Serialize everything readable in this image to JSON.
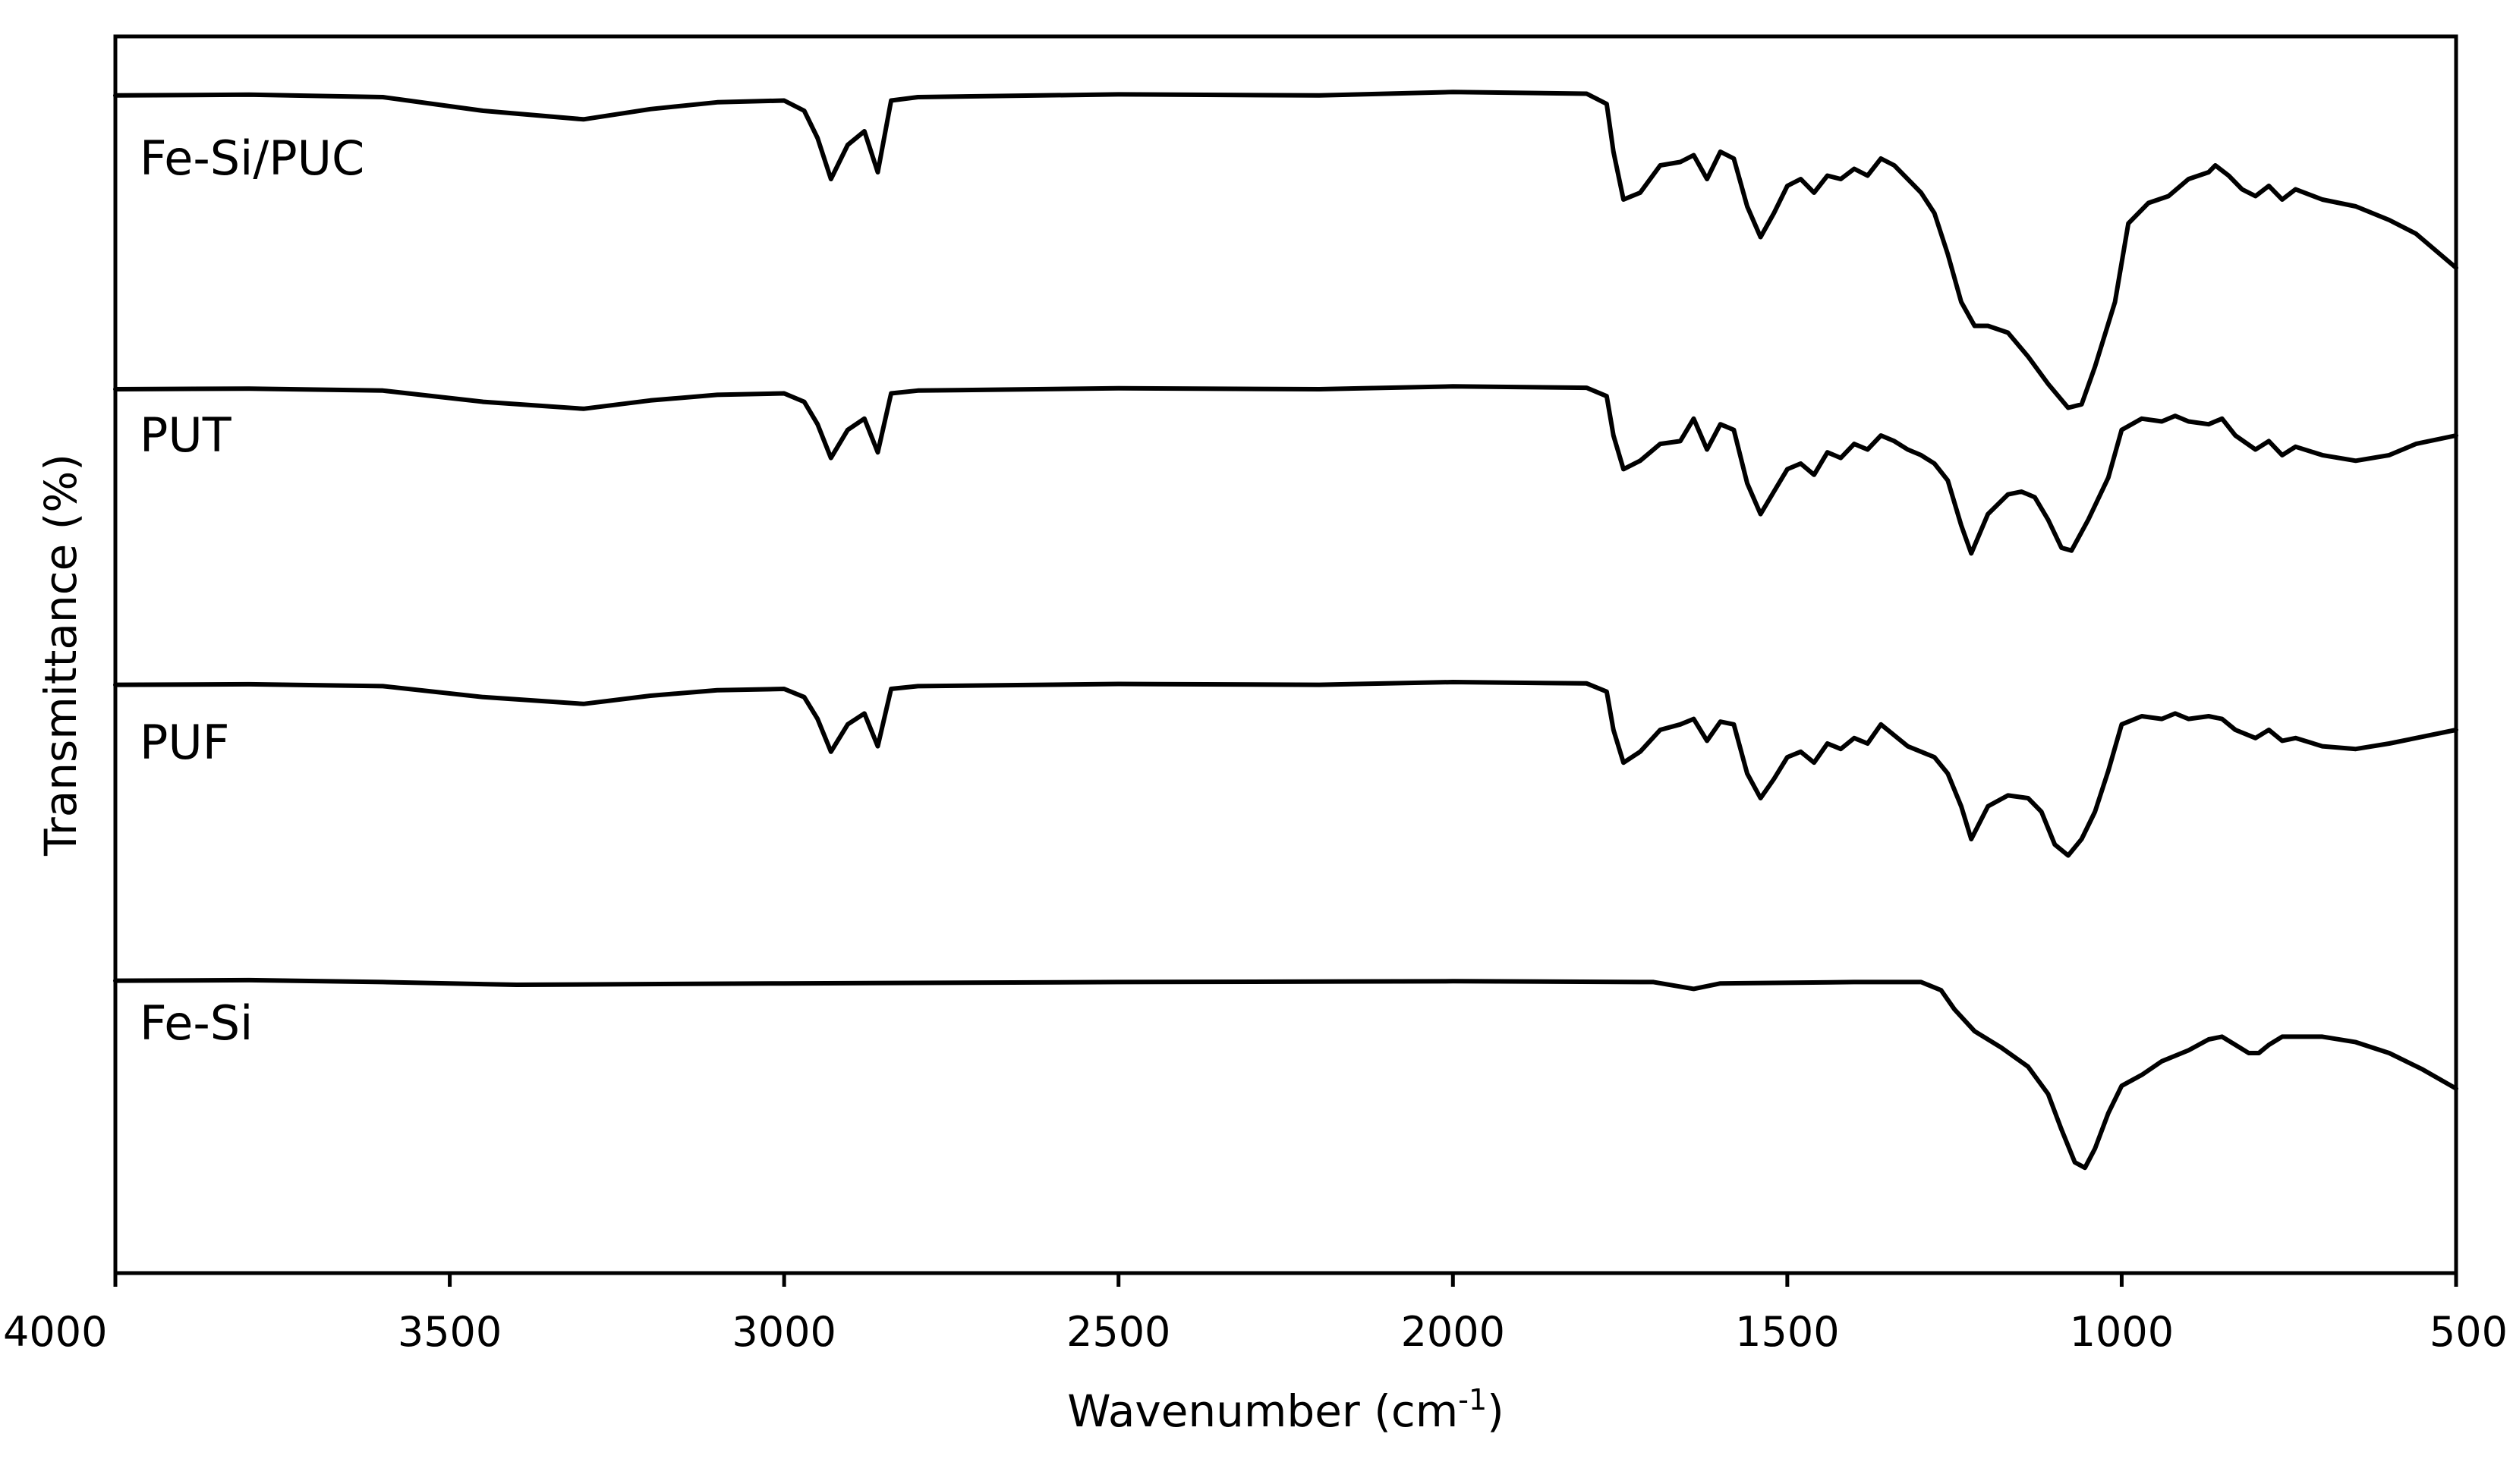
{
  "chart_data": {
    "type": "line",
    "title": "",
    "xlabel": "Wavenumber",
    "xlabel_unit_prefix": "(cm",
    "xlabel_unit_exp": "-1",
    "xlabel_unit_suffix": ")",
    "ylabel": "Transmittance (%)",
    "xlim": [
      4000,
      500
    ],
    "x_reversed": true,
    "y_tick_labels": false,
    "grid": false,
    "legend": "none (series labelled inline)",
    "x_ticks": [
      4000,
      3500,
      3000,
      2500,
      2000,
      1500,
      1000,
      500
    ],
    "y_units": "relative transmittance, 0-100 per panel band (stacked, offset traces)",
    "series": [
      {
        "name": "Fe-Si/PUC",
        "points": [
          [
            4000,
            96.5
          ],
          [
            3800,
            96.7
          ],
          [
            3600,
            96
          ],
          [
            3450,
            92
          ],
          [
            3300,
            89.5
          ],
          [
            3200,
            92.5
          ],
          [
            3100,
            94.5
          ],
          [
            3000,
            95
          ],
          [
            2970,
            92
          ],
          [
            2950,
            84
          ],
          [
            2930,
            72
          ],
          [
            2905,
            82
          ],
          [
            2880,
            86
          ],
          [
            2860,
            74
          ],
          [
            2840,
            95
          ],
          [
            2800,
            96
          ],
          [
            2500,
            96.8
          ],
          [
            2200,
            96.5
          ],
          [
            2000,
            97.5
          ],
          [
            1800,
            97
          ],
          [
            1770,
            94
          ],
          [
            1760,
            80
          ],
          [
            1745,
            66
          ],
          [
            1720,
            68
          ],
          [
            1690,
            76
          ],
          [
            1660,
            77
          ],
          [
            1640,
            79
          ],
          [
            1620,
            72
          ],
          [
            1600,
            80
          ],
          [
            1580,
            78
          ],
          [
            1560,
            64
          ],
          [
            1540,
            55
          ],
          [
            1520,
            62
          ],
          [
            1500,
            70
          ],
          [
            1480,
            72
          ],
          [
            1460,
            68
          ],
          [
            1440,
            73
          ],
          [
            1420,
            72
          ],
          [
            1400,
            75
          ],
          [
            1380,
            73
          ],
          [
            1360,
            78
          ],
          [
            1340,
            76
          ],
          [
            1320,
            72
          ],
          [
            1300,
            68
          ],
          [
            1280,
            62
          ],
          [
            1260,
            50
          ],
          [
            1240,
            36
          ],
          [
            1220,
            29
          ],
          [
            1200,
            29
          ],
          [
            1170,
            27
          ],
          [
            1140,
            20
          ],
          [
            1110,
            12
          ],
          [
            1080,
            5
          ],
          [
            1060,
            6
          ],
          [
            1040,
            17
          ],
          [
            1010,
            36
          ],
          [
            990,
            59
          ],
          [
            960,
            65
          ],
          [
            930,
            67
          ],
          [
            900,
            72
          ],
          [
            870,
            74
          ],
          [
            860,
            76
          ],
          [
            840,
            73
          ],
          [
            820,
            69
          ],
          [
            800,
            67
          ],
          [
            780,
            70
          ],
          [
            760,
            66
          ],
          [
            740,
            69
          ],
          [
            700,
            66
          ],
          [
            650,
            64
          ],
          [
            600,
            60
          ],
          [
            560,
            56
          ],
          [
            500,
            46
          ]
        ]
      },
      {
        "name": "PUT",
        "points": [
          [
            4000,
            96.5
          ],
          [
            3800,
            96.7
          ],
          [
            3600,
            96
          ],
          [
            3450,
            92
          ],
          [
            3300,
            89.5
          ],
          [
            3200,
            92.5
          ],
          [
            3100,
            94.5
          ],
          [
            3000,
            95
          ],
          [
            2970,
            92
          ],
          [
            2950,
            84
          ],
          [
            2930,
            72
          ],
          [
            2905,
            82
          ],
          [
            2880,
            86
          ],
          [
            2860,
            74
          ],
          [
            2840,
            95
          ],
          [
            2800,
            96
          ],
          [
            2500,
            96.8
          ],
          [
            2200,
            96.5
          ],
          [
            2000,
            97.5
          ],
          [
            1800,
            97
          ],
          [
            1770,
            94
          ],
          [
            1760,
            80
          ],
          [
            1745,
            68
          ],
          [
            1720,
            71
          ],
          [
            1690,
            77
          ],
          [
            1660,
            78
          ],
          [
            1640,
            86
          ],
          [
            1620,
            75
          ],
          [
            1600,
            84
          ],
          [
            1580,
            82
          ],
          [
            1560,
            63
          ],
          [
            1540,
            52
          ],
          [
            1520,
            60
          ],
          [
            1500,
            68
          ],
          [
            1480,
            70
          ],
          [
            1460,
            66
          ],
          [
            1440,
            74
          ],
          [
            1420,
            72
          ],
          [
            1400,
            77
          ],
          [
            1380,
            75
          ],
          [
            1360,
            80
          ],
          [
            1340,
            78
          ],
          [
            1320,
            75
          ],
          [
            1300,
            73
          ],
          [
            1280,
            70
          ],
          [
            1260,
            64
          ],
          [
            1240,
            48
          ],
          [
            1225,
            38
          ],
          [
            1200,
            52
          ],
          [
            1170,
            59
          ],
          [
            1150,
            60
          ],
          [
            1130,
            58
          ],
          [
            1110,
            50
          ],
          [
            1090,
            40
          ],
          [
            1075,
            39
          ],
          [
            1050,
            50
          ],
          [
            1020,
            65
          ],
          [
            1000,
            82
          ],
          [
            970,
            86
          ],
          [
            940,
            85
          ],
          [
            920,
            87
          ],
          [
            900,
            85
          ],
          [
            870,
            84
          ],
          [
            850,
            86
          ],
          [
            830,
            80
          ],
          [
            800,
            75
          ],
          [
            780,
            78
          ],
          [
            760,
            73
          ],
          [
            740,
            76
          ],
          [
            700,
            73
          ],
          [
            650,
            71
          ],
          [
            600,
            73
          ],
          [
            560,
            77
          ],
          [
            500,
            80
          ]
        ]
      },
      {
        "name": "PUF",
        "points": [
          [
            4000,
            96.5
          ],
          [
            3800,
            96.7
          ],
          [
            3600,
            96
          ],
          [
            3450,
            92
          ],
          [
            3300,
            89.5
          ],
          [
            3200,
            92.5
          ],
          [
            3100,
            94.5
          ],
          [
            3000,
            95
          ],
          [
            2970,
            92
          ],
          [
            2950,
            84
          ],
          [
            2930,
            72
          ],
          [
            2905,
            82
          ],
          [
            2880,
            86
          ],
          [
            2860,
            74
          ],
          [
            2840,
            95
          ],
          [
            2800,
            96
          ],
          [
            2500,
            96.8
          ],
          [
            2200,
            96.5
          ],
          [
            2000,
            97.5
          ],
          [
            1800,
            97
          ],
          [
            1770,
            94
          ],
          [
            1760,
            80
          ],
          [
            1745,
            68
          ],
          [
            1720,
            72
          ],
          [
            1690,
            80
          ],
          [
            1660,
            82
          ],
          [
            1640,
            84
          ],
          [
            1620,
            76
          ],
          [
            1600,
            83
          ],
          [
            1580,
            82
          ],
          [
            1560,
            64
          ],
          [
            1540,
            55
          ],
          [
            1520,
            62
          ],
          [
            1500,
            70
          ],
          [
            1480,
            72
          ],
          [
            1460,
            68
          ],
          [
            1440,
            75
          ],
          [
            1420,
            73
          ],
          [
            1400,
            77
          ],
          [
            1380,
            75
          ],
          [
            1360,
            82
          ],
          [
            1340,
            78
          ],
          [
            1320,
            74
          ],
          [
            1300,
            72
          ],
          [
            1280,
            70
          ],
          [
            1260,
            64
          ],
          [
            1240,
            52
          ],
          [
            1225,
            40
          ],
          [
            1200,
            52
          ],
          [
            1170,
            56
          ],
          [
            1140,
            55
          ],
          [
            1120,
            50
          ],
          [
            1100,
            38
          ],
          [
            1080,
            34
          ],
          [
            1060,
            40
          ],
          [
            1040,
            50
          ],
          [
            1020,
            65
          ],
          [
            1000,
            82
          ],
          [
            970,
            85
          ],
          [
            940,
            84
          ],
          [
            920,
            86
          ],
          [
            900,
            84
          ],
          [
            870,
            85
          ],
          [
            850,
            84
          ],
          [
            830,
            80
          ],
          [
            800,
            77
          ],
          [
            780,
            80
          ],
          [
            760,
            76
          ],
          [
            740,
            77
          ],
          [
            700,
            74
          ],
          [
            650,
            73
          ],
          [
            600,
            75
          ],
          [
            560,
            77
          ],
          [
            500,
            80
          ]
        ]
      },
      {
        "name": "Fe-Si",
        "points": [
          [
            4000,
            96.5
          ],
          [
            3800,
            96.7
          ],
          [
            3600,
            96
          ],
          [
            3400,
            95
          ],
          [
            3000,
            95.5
          ],
          [
            2500,
            96
          ],
          [
            2000,
            96.3
          ],
          [
            1700,
            96
          ],
          [
            1640,
            93.5
          ],
          [
            1600,
            95.5
          ],
          [
            1400,
            96
          ],
          [
            1300,
            96
          ],
          [
            1270,
            93
          ],
          [
            1250,
            86
          ],
          [
            1220,
            78
          ],
          [
            1180,
            72
          ],
          [
            1140,
            65
          ],
          [
            1110,
            55
          ],
          [
            1090,
            42
          ],
          [
            1070,
            30
          ],
          [
            1055,
            28
          ],
          [
            1040,
            35
          ],
          [
            1020,
            48
          ],
          [
            1000,
            58
          ],
          [
            970,
            62
          ],
          [
            940,
            67
          ],
          [
            900,
            71
          ],
          [
            870,
            75
          ],
          [
            850,
            76
          ],
          [
            830,
            73
          ],
          [
            810,
            70
          ],
          [
            795,
            70
          ],
          [
            780,
            73
          ],
          [
            760,
            76
          ],
          [
            700,
            76
          ],
          [
            650,
            74
          ],
          [
            600,
            70
          ],
          [
            550,
            64
          ],
          [
            500,
            57
          ]
        ]
      }
    ]
  }
}
